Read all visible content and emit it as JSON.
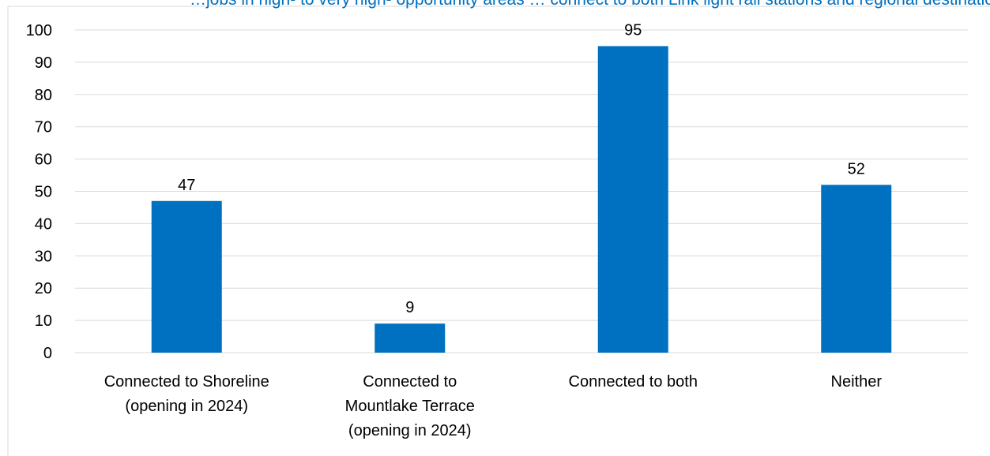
{
  "partial_title": "…jobs  in   high-  to   very  high-   opportunity   areas  … connect  to   both  Link   light  rail   stations   and   regional  destinations",
  "colors": {
    "bar": "#0070C0",
    "grid": "#d9d9d9",
    "title": "#0070C0",
    "frame": "#d9d9d9"
  },
  "chart_data": {
    "type": "bar",
    "title": "",
    "xlabel": "",
    "ylabel": "",
    "categories": [
      [
        "Connected to Shoreline",
        "(opening in 2024)"
      ],
      [
        "Connected to",
        "Mountlake Terrace",
        "(opening in 2024)"
      ],
      [
        "Connected to both"
      ],
      [
        "Neither"
      ]
    ],
    "values": [
      47,
      9,
      95,
      52
    ],
    "data_labels": [
      "47",
      "9",
      "95",
      "52"
    ],
    "ylim": [
      0,
      100
    ],
    "yticks": [
      0,
      10,
      20,
      30,
      40,
      50,
      60,
      70,
      80,
      90,
      100
    ],
    "grid": true,
    "legend": "none"
  }
}
